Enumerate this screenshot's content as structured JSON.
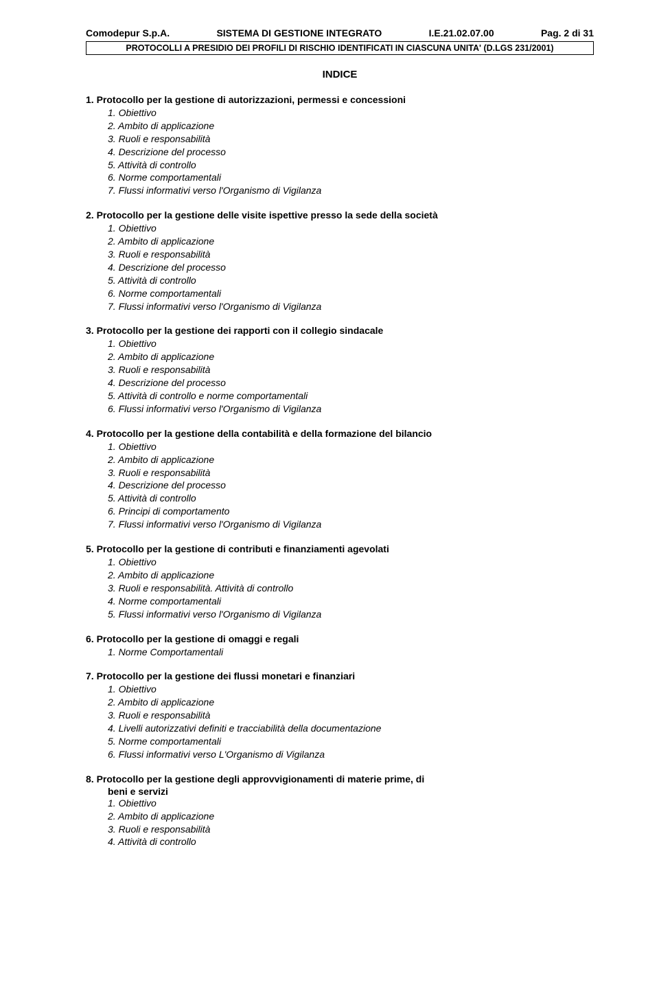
{
  "header": {
    "company": "Comodepur S.p.A.",
    "system": "SISTEMA DI GESTIONE INTEGRATO",
    "code": "I.E.21.02.07.00",
    "page_label": "Pag. 2 di 31",
    "subtitle": "PROTOCOLLI A PRESIDIO DEI PROFILI DI RISCHIO IDENTIFICATI IN CIASCUNA UNITA' (D.LGS 231/2001)"
  },
  "indice_label": "INDICE",
  "sections": {
    "s1": {
      "title": "1. Protocollo per la gestione di autorizzazioni, permessi e concessioni",
      "items": [
        "1. Obiettivo",
        "2. Ambito di applicazione",
        "3. Ruoli e responsabilità",
        "4. Descrizione del processo",
        "5. Attività di controllo",
        "6. Norme comportamentali",
        "7. Flussi informativi verso l'Organismo di Vigilanza"
      ]
    },
    "s2": {
      "title": "2. Protocollo per la gestione delle visite ispettive presso la sede della società",
      "items": [
        "1. Obiettivo",
        "2. Ambito di applicazione",
        "3. Ruoli e responsabilità",
        "4. Descrizione del processo",
        "5. Attività di controllo",
        "6. Norme comportamentali",
        "7. Flussi informativi verso l'Organismo di Vigilanza"
      ]
    },
    "s3": {
      "title": "3. Protocollo per la gestione dei rapporti con il collegio sindacale",
      "items": [
        "1. Obiettivo",
        "2. Ambito di applicazione",
        "3. Ruoli e responsabilità",
        "4. Descrizione del processo",
        "5. Attività di controllo e norme comportamentali",
        "6. Flussi informativi verso l'Organismo di Vigilanza"
      ]
    },
    "s4": {
      "title": "4. Protocollo per la gestione della contabilità e della formazione del bilancio",
      "items": [
        "1. Obiettivo",
        "2. Ambito di applicazione",
        "3. Ruoli e responsabilità",
        "4. Descrizione del processo",
        "5. Attività di controllo",
        "6. Principi di comportamento",
        "7. Flussi informativi verso l'Organismo di Vigilanza"
      ]
    },
    "s5": {
      "title": "5. Protocollo per la gestione di contributi e finanziamenti agevolati",
      "items": [
        "1. Obiettivo",
        "2. Ambito di applicazione",
        "3. Ruoli e responsabilità. Attività di controllo",
        "4. Norme comportamentali",
        "5. Flussi informativi verso l'Organismo di Vigilanza"
      ]
    },
    "s6": {
      "title": "6. Protocollo per la gestione di omaggi e regali",
      "items": [
        "1. Norme Comportamentali"
      ]
    },
    "s7": {
      "title": "7. Protocollo per la gestione dei flussi monetari e finanziari",
      "items": [
        "1. Obiettivo",
        "2. Ambito di applicazione",
        "3. Ruoli e responsabilità",
        "4. Livelli autorizzativi definiti e tracciabilità della documentazione",
        "5. Norme comportamentali",
        "6. Flussi informativi verso L'Organismo di Vigilanza"
      ]
    },
    "s8": {
      "title": "8. Protocollo per la gestione degli approvvigionamenti di materie prime, di",
      "title_line2": "beni e servizi",
      "items": [
        "1. Obiettivo",
        "2. Ambito di applicazione",
        "3. Ruoli e responsabilità",
        "4. Attività di controllo"
      ]
    }
  }
}
